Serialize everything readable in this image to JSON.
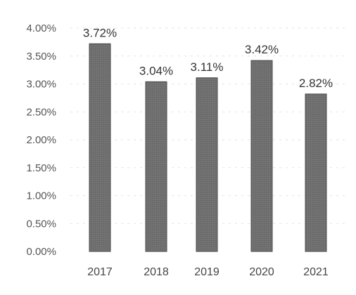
{
  "chart_data": {
    "type": "bar",
    "categories": [
      "2017",
      "2018",
      "2019",
      "2020",
      "2021"
    ],
    "values": [
      3.72,
      3.04,
      3.11,
      3.42,
      2.82
    ],
    "data_labels": [
      "3.72%",
      "3.04%",
      "3.11%",
      "3.42%",
      "2.82%"
    ],
    "y_ticks": [
      "0.00%",
      "0.50%",
      "1.00%",
      "1.50%",
      "2.00%",
      "2.50%",
      "3.00%",
      "3.50%",
      "4.00%"
    ],
    "ylim": [
      0,
      4
    ],
    "title": "",
    "xlabel": "",
    "ylabel": "",
    "grid": true,
    "legend": "none",
    "colors": {
      "bar": "#6e6e6e",
      "bar_edge": "#4a4a4a",
      "text": "#444444",
      "grid": "#e2e2e2"
    }
  }
}
